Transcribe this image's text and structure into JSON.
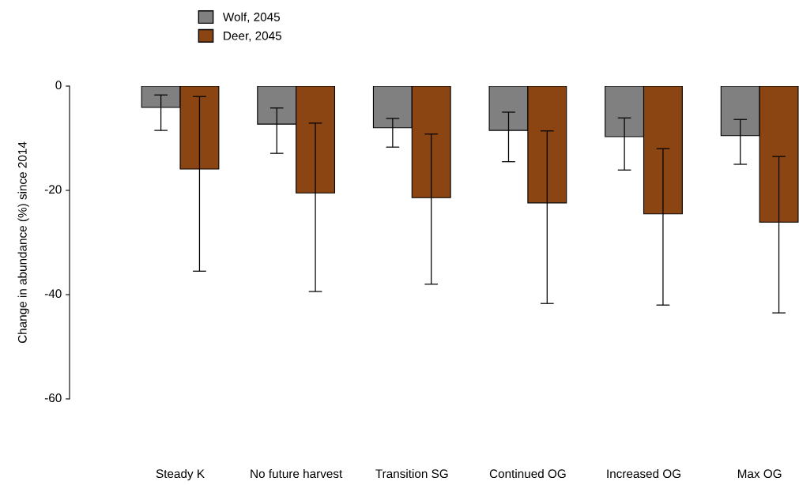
{
  "chart_data": {
    "type": "bar",
    "ylabel": "Change in abundance (%) since 2014",
    "categories": [
      "Steady K",
      "No future harvest",
      "Transition SG",
      "Continued OG",
      "Increased OG",
      "Max OG"
    ],
    "series": [
      {
        "name": "Wolf, 2045",
        "color": "#808080",
        "values": [
          -4.1,
          -7.3,
          -8.0,
          -8.5,
          -9.7,
          -9.5
        ],
        "errors": [
          [
            -8.5,
            -1.7
          ],
          [
            -12.9,
            -4.2
          ],
          [
            -11.7,
            -6.2
          ],
          [
            -14.5,
            -5.0
          ],
          [
            -16.1,
            -6.1
          ],
          [
            -15.0,
            -6.4
          ]
        ]
      },
      {
        "name": "Deer, 2045",
        "color": "#8b4513",
        "values": [
          -15.9,
          -20.5,
          -21.4,
          -22.4,
          -24.5,
          -26.1
        ],
        "errors": [
          [
            -35.5,
            -2.0
          ],
          [
            -39.4,
            -7.1
          ],
          [
            -38.0,
            -9.2
          ],
          [
            -41.7,
            -8.6
          ],
          [
            -42.0,
            -12.0
          ],
          [
            -43.5,
            -13.5
          ]
        ]
      }
    ],
    "ylim": [
      -60,
      0
    ],
    "yticks": [
      -60,
      -40,
      -20,
      0
    ],
    "grid": false,
    "legend": "top left"
  }
}
